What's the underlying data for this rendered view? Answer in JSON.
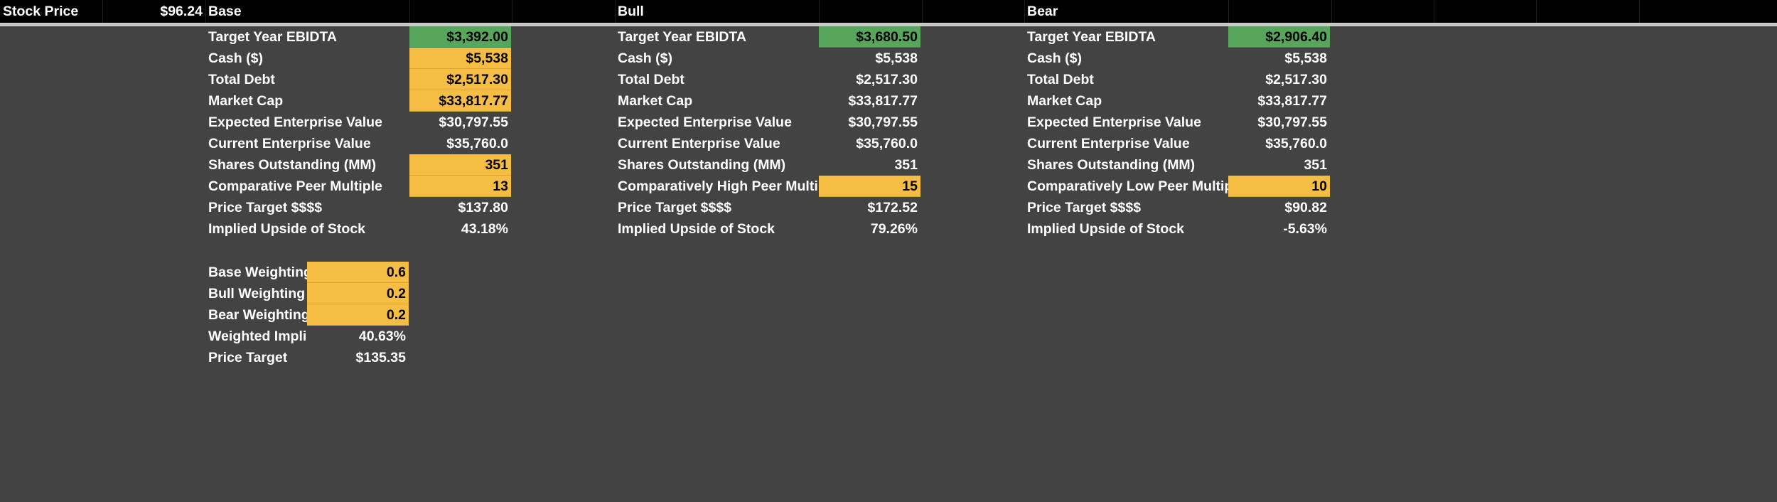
{
  "header": {
    "stock_price_label": "Stock Price",
    "stock_price_value": "$96.24"
  },
  "scenarios": [
    {
      "title": "Base",
      "rows": [
        {
          "label": "Target Year EBIDTA",
          "value": "$3,392.00",
          "highlight": "green"
        },
        {
          "label": "Cash ($)",
          "value": "$5,538",
          "highlight": "yellow"
        },
        {
          "label": "Total Debt",
          "value": "$2,517.30",
          "highlight": "yellow"
        },
        {
          "label": "Market Cap",
          "value": "$33,817.77",
          "highlight": "yellow"
        },
        {
          "label": "Expected Enterprise Value",
          "value": "$30,797.55",
          "highlight": ""
        },
        {
          "label": "Current Enterprise Value",
          "value": "$35,760.0",
          "highlight": ""
        },
        {
          "label": "Shares Outstanding (MM)",
          "value": "351",
          "highlight": "yellow"
        },
        {
          "label": "Comparative Peer Multiple",
          "value": "13",
          "highlight": "yellow"
        },
        {
          "label": "Price Target $$$$",
          "value": "$137.80",
          "highlight": ""
        },
        {
          "label": "Implied Upside of Stock",
          "value": "43.18%",
          "highlight": ""
        }
      ]
    },
    {
      "title": "Bull",
      "rows": [
        {
          "label": "Target Year EBIDTA",
          "value": "$3,680.50",
          "highlight": "green"
        },
        {
          "label": "Cash ($)",
          "value": "$5,538",
          "highlight": ""
        },
        {
          "label": "Total Debt",
          "value": "$2,517.30",
          "highlight": ""
        },
        {
          "label": "Market Cap",
          "value": "$33,817.77",
          "highlight": ""
        },
        {
          "label": "Expected Enterprise Value",
          "value": "$30,797.55",
          "highlight": ""
        },
        {
          "label": "Current Enterprise Value",
          "value": "$35,760.0",
          "highlight": ""
        },
        {
          "label": "Shares Outstanding (MM)",
          "value": "351",
          "highlight": ""
        },
        {
          "label": "Comparatively High Peer Multiple",
          "value": "15",
          "highlight": "yellow"
        },
        {
          "label": "Price Target $$$$",
          "value": "$172.52",
          "highlight": ""
        },
        {
          "label": "Implied Upside of Stock",
          "value": "79.26%",
          "highlight": ""
        }
      ]
    },
    {
      "title": "Bear",
      "rows": [
        {
          "label": "Target Year EBIDTA",
          "value": "$2,906.40",
          "highlight": "green"
        },
        {
          "label": "Cash ($)",
          "value": "$5,538",
          "highlight": ""
        },
        {
          "label": "Total Debt",
          "value": "$2,517.30",
          "highlight": ""
        },
        {
          "label": "Market Cap",
          "value": "$33,817.77",
          "highlight": ""
        },
        {
          "label": "Expected Enterprise Value",
          "value": "$30,797.55",
          "highlight": ""
        },
        {
          "label": "Current Enterprise Value",
          "value": "$35,760.0",
          "highlight": ""
        },
        {
          "label": "Shares Outstanding (MM)",
          "value": "351",
          "highlight": ""
        },
        {
          "label": "Comparatively Low Peer Multiple",
          "value": "10",
          "highlight": "yellow"
        },
        {
          "label": "Price Target $$$$",
          "value": "$90.82",
          "highlight": ""
        },
        {
          "label": "Implied Upside of Stock",
          "value": "-5.63%",
          "highlight": ""
        }
      ]
    }
  ],
  "weighting": {
    "rows": [
      {
        "label": "Base Weighting",
        "value": "0.6",
        "highlight": "yellow"
      },
      {
        "label": "Bull Weighting",
        "value": "0.2",
        "highlight": "yellow"
      },
      {
        "label": "Bear Weighting",
        "value": "0.2",
        "highlight": "yellow"
      },
      {
        "label": "Weighted Implied Upside",
        "value": "40.63%",
        "highlight": ""
      },
      {
        "label": "Price Target",
        "value": "$135.35",
        "highlight": ""
      }
    ]
  },
  "colors": {
    "background": "#434343",
    "header": "#000000",
    "highlight_green": "#57a65c",
    "highlight_yellow": "#f5bd44"
  }
}
